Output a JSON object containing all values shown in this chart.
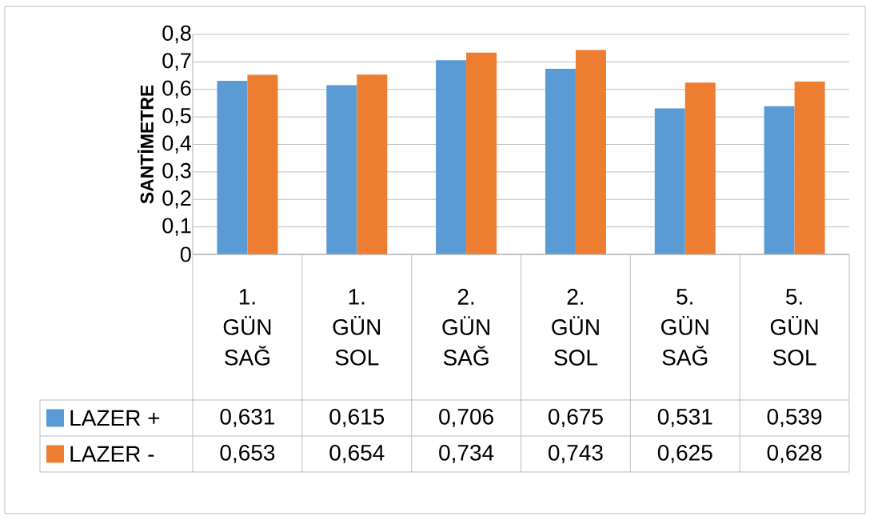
{
  "chart_data": {
    "type": "bar",
    "ylabel": "SANTİMETRE",
    "categories": [
      "1. GÜN SAĞ",
      "1. GÜN SOL",
      "2. GÜN SAĞ",
      "2. GÜN SOL",
      "5. GÜN SAĞ",
      "5. GÜN SOL"
    ],
    "series": [
      {
        "name": "LAZER +",
        "color": "#5b9bd5",
        "values": [
          0.631,
          0.615,
          0.706,
          0.675,
          0.531,
          0.539
        ],
        "value_labels": [
          "0,631",
          "0,615",
          "0,706",
          "0,675",
          "0,531",
          "0,539"
        ]
      },
      {
        "name": "LAZER -",
        "color": "#ed7d31",
        "values": [
          0.653,
          0.654,
          0.734,
          0.743,
          0.625,
          0.628
        ],
        "value_labels": [
          "0,653",
          "0,654",
          "0,734",
          "0,743",
          "0,625",
          "0,628"
        ]
      }
    ],
    "ylim": [
      0,
      0.8
    ],
    "yticks": [
      0,
      {
        "value": 0.1,
        "label": "0,1"
      },
      {
        "value": 0.2,
        "label": "0,2"
      },
      {
        "value": 0.3,
        "label": "0,3"
      },
      {
        "value": 0.4,
        "label": "0,4"
      },
      {
        "value": 0.5,
        "label": "0,5"
      },
      {
        "value": 0.6,
        "label": "0,6"
      },
      {
        "value": 0.7,
        "label": "0,7"
      },
      {
        "value": 0.8,
        "label": "0,8"
      }
    ],
    "grid": "y",
    "legend": "bottom left"
  }
}
